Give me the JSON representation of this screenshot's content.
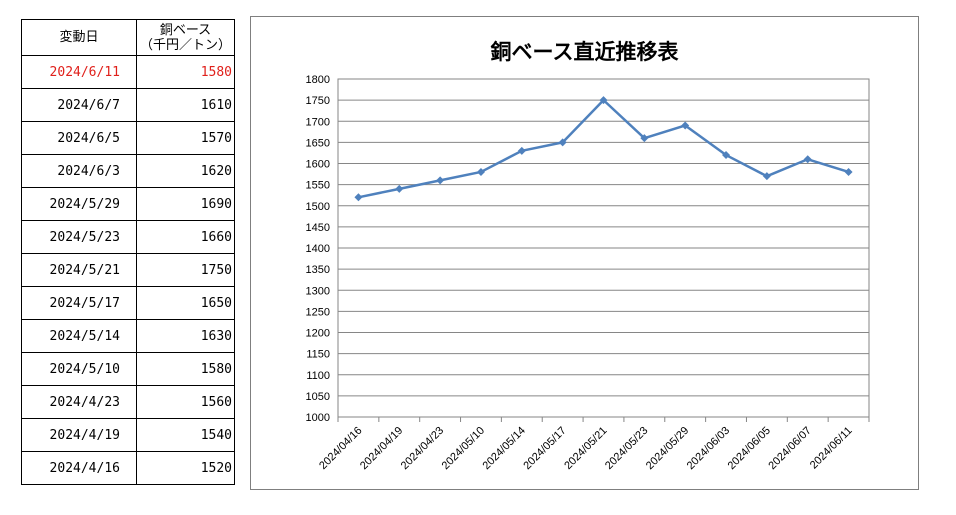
{
  "table": {
    "headers": {
      "date": "変動日",
      "value_line1": "銅ベース",
      "value_line2": "（千円／トン）"
    },
    "highlight_color": "#e0201b",
    "rows": [
      {
        "date": "2024/6/11",
        "value": "1580",
        "highlight": true
      },
      {
        "date": "2024/6/7",
        "value": "1610",
        "highlight": false
      },
      {
        "date": "2024/6/5",
        "value": "1570",
        "highlight": false
      },
      {
        "date": "2024/6/3",
        "value": "1620",
        "highlight": false
      },
      {
        "date": "2024/5/29",
        "value": "1690",
        "highlight": false
      },
      {
        "date": "2024/5/23",
        "value": "1660",
        "highlight": false
      },
      {
        "date": "2024/5/21",
        "value": "1750",
        "highlight": false
      },
      {
        "date": "2024/5/17",
        "value": "1650",
        "highlight": false
      },
      {
        "date": "2024/5/14",
        "value": "1630",
        "highlight": false
      },
      {
        "date": "2024/5/10",
        "value": "1580",
        "highlight": false
      },
      {
        "date": "2024/4/23",
        "value": "1560",
        "highlight": false
      },
      {
        "date": "2024/4/19",
        "value": "1540",
        "highlight": false
      },
      {
        "date": "2024/4/16",
        "value": "1520",
        "highlight": false
      }
    ]
  },
  "chart_data": {
    "type": "line",
    "title": "銅ベース直近推移表",
    "xlabel": "",
    "ylabel": "",
    "categories": [
      "2024/04/16",
      "2024/04/19",
      "2024/04/23",
      "2024/05/10",
      "2024/05/14",
      "2024/05/17",
      "2024/05/21",
      "2024/05/23",
      "2024/05/29",
      "2024/06/03",
      "2024/06/05",
      "2024/06/07",
      "2024/06/11"
    ],
    "series": [
      {
        "values": [
          1520,
          1540,
          1560,
          1580,
          1630,
          1650,
          1750,
          1660,
          1690,
          1620,
          1570,
          1610,
          1580
        ],
        "color": "#4f81bd",
        "marker": "diamond"
      }
    ],
    "ylim": [
      1000,
      1800
    ],
    "ytick_step": 50,
    "grid": true,
    "legend": "none"
  }
}
